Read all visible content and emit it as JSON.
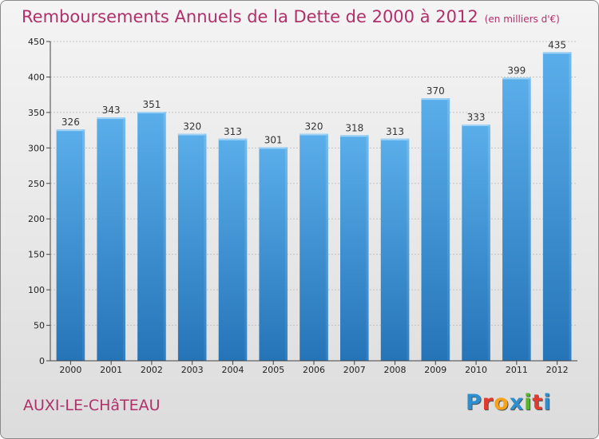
{
  "header": {
    "title": "Remboursements Annuels de la Dette de 2000 à 2012",
    "unit": "(en milliers d'€)"
  },
  "footer": {
    "place": "AUXI-LE-CHâTEAU",
    "logo_letters": [
      "P",
      "r",
      "o",
      "x",
      "i",
      "t",
      "i"
    ],
    "logo_colors": [
      "#2e8fd0",
      "#e23a2c",
      "#f6a31b",
      "#2e8fd0",
      "#5ab52e",
      "#e23a2c",
      "#2e8fd0"
    ]
  },
  "chart_data": {
    "type": "bar",
    "categories": [
      "2000",
      "2001",
      "2002",
      "2003",
      "2004",
      "2005",
      "2006",
      "2007",
      "2008",
      "2009",
      "2010",
      "2011",
      "2012"
    ],
    "values": [
      326,
      343,
      351,
      320,
      313,
      301,
      320,
      318,
      313,
      370,
      333,
      399,
      435
    ],
    "title": "Remboursements Annuels de la Dette de 2000 à 2012",
    "ylim": [
      0,
      450
    ],
    "yticks": [
      0,
      50,
      100,
      150,
      200,
      250,
      300,
      350,
      400,
      450
    ],
    "grid": true,
    "bar_color": "#3a8fd6"
  }
}
